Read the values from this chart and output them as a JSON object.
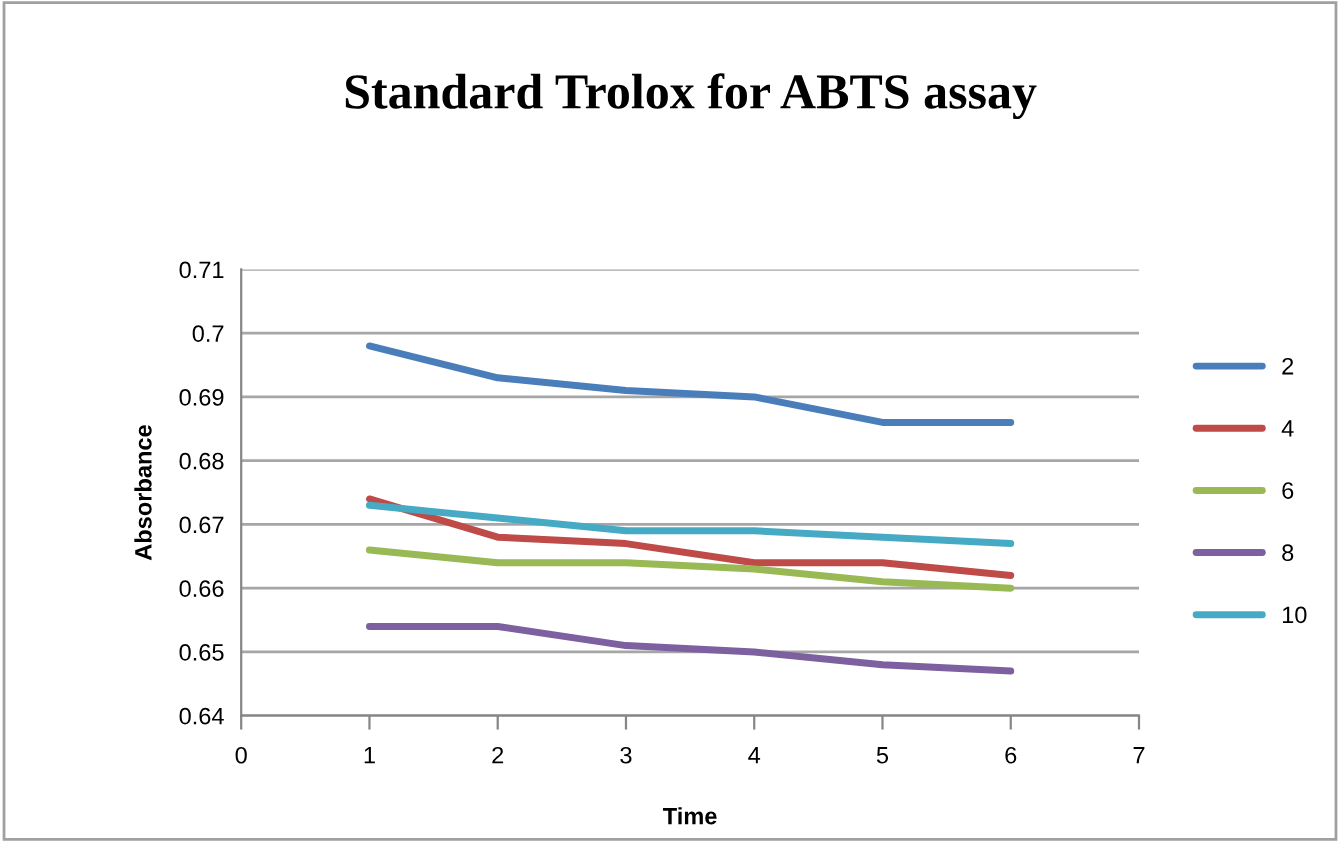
{
  "chart_data": {
    "type": "line",
    "title": "Standard Trolox for ABTS assay",
    "xlabel": "Time",
    "ylabel": "Absorbance",
    "x": [
      1,
      2,
      3,
      4,
      5,
      6
    ],
    "series": [
      {
        "name": "2",
        "color": "#4a7ebb",
        "values": [
          0.698,
          0.693,
          0.691,
          0.69,
          0.686,
          0.686
        ]
      },
      {
        "name": "4",
        "color": "#be4b48",
        "values": [
          0.674,
          0.668,
          0.667,
          0.664,
          0.664,
          0.662
        ]
      },
      {
        "name": "6",
        "color": "#98b954",
        "values": [
          0.666,
          0.664,
          0.664,
          0.663,
          0.661,
          0.66
        ]
      },
      {
        "name": "8",
        "color": "#7d60a0",
        "values": [
          0.654,
          0.654,
          0.651,
          0.65,
          0.648,
          0.647
        ]
      },
      {
        "name": "10",
        "color": "#46aac5",
        "values": [
          0.673,
          0.671,
          0.669,
          0.669,
          0.668,
          0.667
        ]
      }
    ],
    "xlim": [
      0,
      7
    ],
    "xticks": [
      0,
      1,
      2,
      3,
      4,
      5,
      6,
      7
    ],
    "ylim": [
      0.64,
      0.71
    ],
    "yticks": [
      0.64,
      0.65,
      0.66,
      0.67,
      0.68,
      0.69,
      {
        "value": 0.7,
        "label": "0.7"
      },
      0.71
    ],
    "grid": "y",
    "legend": "right",
    "marker": "none",
    "line_style": "solid"
  }
}
